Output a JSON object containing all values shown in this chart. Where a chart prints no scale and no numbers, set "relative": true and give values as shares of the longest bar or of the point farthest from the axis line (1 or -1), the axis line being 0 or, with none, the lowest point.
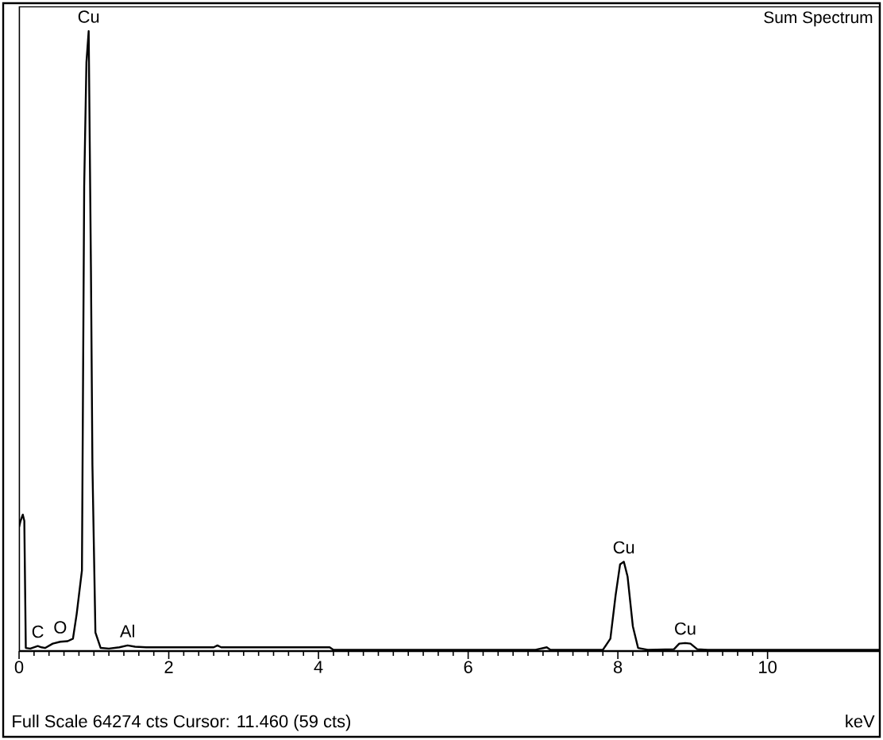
{
  "chart_data": {
    "type": "line",
    "relative": true,
    "xlabel": "keV",
    "xlim": [
      0,
      11.5
    ],
    "xticks": [
      0,
      2,
      4,
      6,
      8,
      10
    ],
    "x": [
      0.0,
      0.02,
      0.05,
      0.07,
      0.09,
      0.15,
      0.25,
      0.3,
      0.35,
      0.45,
      0.55,
      0.65,
      0.72,
      0.77,
      0.8,
      0.84,
      0.87,
      0.9,
      0.93,
      0.96,
      0.98,
      1.02,
      1.09,
      1.2,
      1.34,
      1.45,
      1.55,
      1.7,
      2.6,
      2.65,
      2.7,
      4.15,
      4.2,
      6.9,
      7.05,
      7.1,
      7.8,
      7.9,
      7.97,
      8.03,
      8.08,
      8.13,
      8.2,
      8.27,
      8.4,
      8.75,
      8.82,
      8.9,
      8.97,
      9.06,
      9.2,
      11.5
    ],
    "series": [
      {
        "color": "#000000",
        "values": [
          0.2,
          0.21,
          0.22,
          0.21,
          0.005,
          0.004,
          0.008,
          0.006,
          0.005,
          0.012,
          0.015,
          0.016,
          0.02,
          0.06,
          0.09,
          0.13,
          0.75,
          0.95,
          1.0,
          0.62,
          0.3,
          0.03,
          0.005,
          0.004,
          0.006,
          0.009,
          0.007,
          0.006,
          0.006,
          0.009,
          0.006,
          0.006,
          0.002,
          0.002,
          0.006,
          0.002,
          0.002,
          0.02,
          0.09,
          0.14,
          0.144,
          0.12,
          0.04,
          0.005,
          0.002,
          0.003,
          0.012,
          0.013,
          0.012,
          0.003,
          0.002,
          0.002
        ]
      }
    ],
    "annotations": [
      "Sum Spectrum",
      "Full Scale 64274 cts Cursor: 11.460  (59 cts)",
      {
        "text": "Cu",
        "x": 0.93,
        "y": 1.0
      },
      {
        "text": "O",
        "x": 0.55,
        "y": 0.015
      },
      {
        "text": "C",
        "x": 0.25,
        "y": 0.008
      },
      {
        "text": "Al",
        "x": 1.45,
        "y": 0.009
      },
      {
        "text": "Cu",
        "x": 8.08,
        "y": 0.144
      },
      {
        "text": "Cu",
        "x": 8.9,
        "y": 0.013
      }
    ],
    "marker": "none",
    "line_style": "solid"
  }
}
